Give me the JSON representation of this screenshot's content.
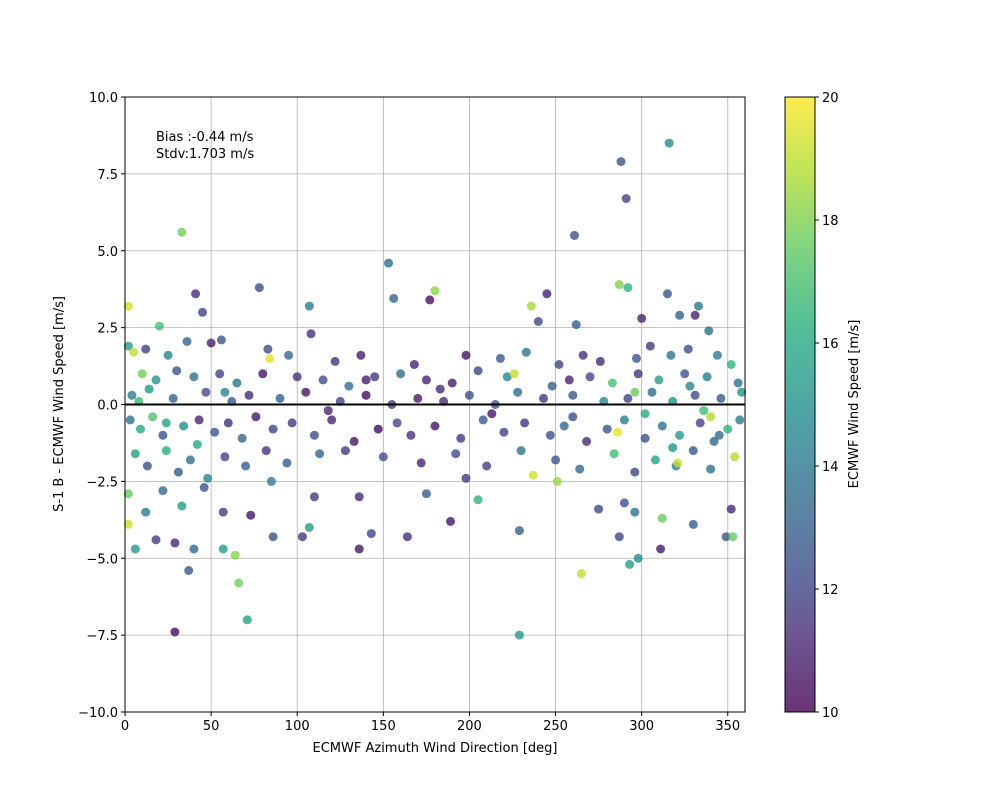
{
  "chart_data": {
    "type": "scatter",
    "xlabel": "ECMWF Azimuth Wind Direction [deg]",
    "ylabel": "S-1 B - ECMWF Wind Speed [m/s]",
    "xlim": [
      0,
      360
    ],
    "ylim": [
      -10,
      10
    ],
    "x_ticks": [
      "0",
      "50",
      "100",
      "150",
      "200",
      "250",
      "300",
      "350"
    ],
    "y_ticks": [
      "−10.0",
      "−7.5",
      "−5.0",
      "−2.5",
      "0.0",
      "2.5",
      "5.0",
      "7.5",
      "10.0"
    ],
    "grid": true,
    "reference_line_y": 0,
    "annotation": {
      "line1": "Bias :-0.44 m/s",
      "line2": "Stdv:1.703 m/s"
    },
    "colorbar": {
      "label": "ECMWF Wind Speed [m/s]",
      "range": [
        10,
        20
      ],
      "ticks": [
        "10",
        "12",
        "14",
        "16",
        "18",
        "20"
      ],
      "colormap": "viridis",
      "colors": [
        "#440154",
        "#472c7a",
        "#3b528b",
        "#2c728e",
        "#21918c",
        "#28ae80",
        "#5ec962",
        "#addc30",
        "#fde725"
      ]
    },
    "point_alpha": 0.8,
    "series": [
      {
        "points": [
          [
            316,
            8.5,
            14.8
          ],
          [
            288,
            7.9,
            12.6
          ],
          [
            291,
            6.7,
            12.0
          ],
          [
            33,
            5.6,
            17.8
          ],
          [
            261,
            5.5,
            12.4
          ],
          [
            153,
            4.6,
            13.6
          ],
          [
            287,
            3.9,
            18.0
          ],
          [
            292,
            3.8,
            16.5
          ],
          [
            180,
            3.7,
            18.2
          ],
          [
            41,
            3.6,
            11.2
          ],
          [
            245,
            3.6,
            11.0
          ],
          [
            156,
            3.45,
            13.2
          ],
          [
            177,
            3.4,
            10.4
          ],
          [
            78,
            3.8,
            12.4
          ],
          [
            2,
            3.2,
            19.3
          ],
          [
            107,
            3.2,
            14.2
          ],
          [
            236,
            3.2,
            18.6
          ],
          [
            333,
            3.2,
            14.0
          ],
          [
            315,
            3.6,
            12.6
          ],
          [
            331,
            2.9,
            11.0
          ],
          [
            20,
            2.55,
            17.0
          ],
          [
            262,
            2.6,
            13.0
          ],
          [
            108,
            2.3,
            11.4
          ],
          [
            45,
            3.0,
            12.0
          ],
          [
            240,
            2.7,
            12.2
          ],
          [
            300,
            2.8,
            11.0
          ],
          [
            322,
            2.9,
            13.0
          ],
          [
            339,
            2.4,
            13.6
          ],
          [
            2,
            1.9,
            15.5
          ],
          [
            5,
            1.7,
            19.0
          ],
          [
            12,
            1.8,
            12.0
          ],
          [
            25,
            1.6,
            14.6
          ],
          [
            36,
            2.05,
            13.2
          ],
          [
            50,
            2.0,
            10.8
          ],
          [
            56,
            2.1,
            12.6
          ],
          [
            83,
            1.8,
            12.4
          ],
          [
            95,
            1.6,
            13.4
          ],
          [
            122,
            1.4,
            11.6
          ],
          [
            137,
            1.6,
            10.8
          ],
          [
            168,
            1.3,
            11.0
          ],
          [
            198,
            1.6,
            10.6
          ],
          [
            218,
            1.5,
            12.8
          ],
          [
            233,
            1.7,
            13.8
          ],
          [
            252,
            1.3,
            12.0
          ],
          [
            266,
            1.6,
            11.4
          ],
          [
            276,
            1.4,
            11.2
          ],
          [
            297,
            1.5,
            12.6
          ],
          [
            305,
            1.9,
            11.6
          ],
          [
            317,
            1.6,
            13.8
          ],
          [
            327,
            1.8,
            12.4
          ],
          [
            344,
            1.6,
            14.0
          ],
          [
            352,
            1.3,
            16.5
          ],
          [
            10,
            1.0,
            17.8
          ],
          [
            18,
            0.8,
            15.0
          ],
          [
            30,
            1.1,
            12.6
          ],
          [
            40,
            0.9,
            13.8
          ],
          [
            55,
            1.0,
            12.0
          ],
          [
            65,
            0.7,
            13.8
          ],
          [
            80,
            1.0,
            10.6
          ],
          [
            100,
            0.9,
            11.4
          ],
          [
            115,
            0.8,
            12.4
          ],
          [
            130,
            0.6,
            13.6
          ],
          [
            145,
            0.9,
            11.6
          ],
          [
            160,
            1.0,
            13.4
          ],
          [
            175,
            0.8,
            11.0
          ],
          [
            190,
            0.7,
            10.8
          ],
          [
            205,
            1.1,
            12.2
          ],
          [
            222,
            0.9,
            14.4
          ],
          [
            248,
            0.6,
            13.0
          ],
          [
            258,
            0.8,
            11.0
          ],
          [
            270,
            0.9,
            12.2
          ],
          [
            283,
            0.7,
            17.0
          ],
          [
            298,
            1.0,
            11.4
          ],
          [
            310,
            0.8,
            15.6
          ],
          [
            325,
            1.0,
            12.6
          ],
          [
            338,
            0.9,
            14.2
          ],
          [
            356,
            0.7,
            13.6
          ],
          [
            4,
            0.3,
            14.0
          ],
          [
            14,
            0.5,
            15.2
          ],
          [
            28,
            0.2,
            13.0
          ],
          [
            47,
            0.4,
            12.4
          ],
          [
            62,
            0.1,
            12.8
          ],
          [
            72,
            0.3,
            11.2
          ],
          [
            90,
            0.2,
            13.2
          ],
          [
            105,
            0.4,
            10.6
          ],
          [
            125,
            0.1,
            12.0
          ],
          [
            140,
            0.3,
            10.4
          ],
          [
            155,
            0.0,
            11.6
          ],
          [
            170,
            0.2,
            10.8
          ],
          [
            185,
            0.1,
            11.2
          ],
          [
            200,
            0.3,
            12.4
          ],
          [
            215,
            0.0,
            12.6
          ],
          [
            228,
            0.4,
            13.4
          ],
          [
            243,
            0.2,
            11.4
          ],
          [
            260,
            0.3,
            12.8
          ],
          [
            278,
            0.1,
            14.6
          ],
          [
            292,
            0.2,
            12.0
          ],
          [
            306,
            0.4,
            13.4
          ],
          [
            318,
            0.1,
            15.0
          ],
          [
            331,
            0.3,
            12.2
          ],
          [
            346,
            0.2,
            12.8
          ],
          [
            358,
            0.4,
            15.2
          ],
          [
            3,
            -0.5,
            13.8
          ],
          [
            9,
            -0.8,
            16.0
          ],
          [
            16,
            -0.4,
            17.2
          ],
          [
            22,
            -1.0,
            12.6
          ],
          [
            34,
            -0.7,
            14.8
          ],
          [
            43,
            -0.5,
            11.0
          ],
          [
            52,
            -0.9,
            12.8
          ],
          [
            60,
            -0.6,
            11.4
          ],
          [
            68,
            -1.1,
            13.2
          ],
          [
            76,
            -0.4,
            10.6
          ],
          [
            86,
            -0.8,
            12.0
          ],
          [
            97,
            -0.6,
            11.6
          ],
          [
            110,
            -1.0,
            12.4
          ],
          [
            120,
            -0.5,
            11.0
          ],
          [
            133,
            -1.2,
            10.6
          ],
          [
            147,
            -0.8,
            10.4
          ],
          [
            158,
            -0.6,
            12.2
          ],
          [
            166,
            -1.0,
            11.4
          ],
          [
            180,
            -0.7,
            10.6
          ],
          [
            195,
            -1.1,
            11.6
          ],
          [
            208,
            -0.5,
            12.8
          ],
          [
            220,
            -0.9,
            12.0
          ],
          [
            232,
            -0.6,
            11.4
          ],
          [
            247,
            -1.0,
            12.6
          ],
          [
            255,
            -0.7,
            13.4
          ],
          [
            268,
            -1.2,
            11.2
          ],
          [
            280,
            -0.8,
            12.6
          ],
          [
            290,
            -0.5,
            14.2
          ],
          [
            302,
            -1.1,
            12.4
          ],
          [
            312,
            -0.7,
            13.8
          ],
          [
            322,
            -1.0,
            15.4
          ],
          [
            334,
            -0.6,
            12.0
          ],
          [
            342,
            -1.2,
            13.2
          ],
          [
            350,
            -0.8,
            16.4
          ],
          [
            357,
            -0.5,
            14.0
          ],
          [
            6,
            -1.6,
            15.6
          ],
          [
            13,
            -2.0,
            12.4
          ],
          [
            24,
            -1.5,
            16.2
          ],
          [
            31,
            -2.2,
            12.8
          ],
          [
            38,
            -1.8,
            13.6
          ],
          [
            48,
            -2.4,
            14.6
          ],
          [
            58,
            -1.7,
            12.0
          ],
          [
            70,
            -2.0,
            13.0
          ],
          [
            82,
            -1.5,
            11.4
          ],
          [
            94,
            -1.9,
            12.8
          ],
          [
            113,
            -1.6,
            13.2
          ],
          [
            128,
            -1.5,
            11.6
          ],
          [
            150,
            -1.7,
            12.4
          ],
          [
            172,
            -1.9,
            11.0
          ],
          [
            192,
            -1.6,
            12.2
          ],
          [
            210,
            -2.0,
            11.8
          ],
          [
            230,
            -1.5,
            13.8
          ],
          [
            250,
            -1.8,
            12.6
          ],
          [
            264,
            -2.1,
            13.4
          ],
          [
            284,
            -1.6,
            16.8
          ],
          [
            296,
            -2.2,
            12.2
          ],
          [
            308,
            -1.8,
            15.8
          ],
          [
            320,
            -2.0,
            14.2
          ],
          [
            330,
            -1.5,
            12.8
          ],
          [
            340,
            -2.1,
            13.6
          ],
          [
            354,
            -1.7,
            18.8
          ],
          [
            2,
            -2.9,
            17.6
          ],
          [
            12,
            -3.5,
            14.2
          ],
          [
            22,
            -2.8,
            13.4
          ],
          [
            33,
            -3.3,
            15.4
          ],
          [
            46,
            -2.7,
            12.6
          ],
          [
            57,
            -3.5,
            11.8
          ],
          [
            73,
            -3.6,
            10.6
          ],
          [
            85,
            -2.5,
            14.2
          ],
          [
            110,
            -3.0,
            11.6
          ],
          [
            136,
            -3.0,
            11.2
          ],
          [
            175,
            -2.9,
            12.8
          ],
          [
            198,
            -2.4,
            11.6
          ],
          [
            205,
            -3.1,
            16.4
          ],
          [
            275,
            -3.4,
            12.2
          ],
          [
            290,
            -3.2,
            12.4
          ],
          [
            296,
            -3.5,
            13.8
          ],
          [
            312,
            -3.7,
            17.6
          ],
          [
            330,
            -3.9,
            13.0
          ],
          [
            352,
            -3.4,
            11.2
          ],
          [
            2,
            -3.9,
            19.3
          ],
          [
            6,
            -4.7,
            15.2
          ],
          [
            18,
            -4.4,
            11.8
          ],
          [
            29,
            -4.5,
            11.0
          ],
          [
            37,
            -5.4,
            12.8
          ],
          [
            40,
            -4.7,
            13.4
          ],
          [
            57,
            -4.7,
            15.4
          ],
          [
            64,
            -4.9,
            18.2
          ],
          [
            86,
            -4.3,
            12.6
          ],
          [
            103,
            -4.3,
            11.6
          ],
          [
            107,
            -4.0,
            15.6
          ],
          [
            136,
            -4.7,
            10.6
          ],
          [
            143,
            -4.2,
            12.0
          ],
          [
            164,
            -4.3,
            11.4
          ],
          [
            189,
            -3.8,
            10.6
          ],
          [
            229,
            -4.1,
            13.0
          ],
          [
            287,
            -4.3,
            12.2
          ],
          [
            311,
            -4.7,
            10.8
          ],
          [
            349,
            -4.3,
            12.6
          ],
          [
            353,
            -4.3,
            17.6
          ],
          [
            293,
            -5.2,
            15.6
          ],
          [
            298,
            -5.0,
            14.8
          ],
          [
            66,
            -5.8,
            17.8
          ],
          [
            265,
            -5.5,
            19.0
          ],
          [
            71,
            -7.0,
            15.8
          ],
          [
            29,
            -7.4,
            10.4
          ],
          [
            229,
            -7.5,
            15.4
          ],
          [
            140,
            0.8,
            10.8
          ],
          [
            183,
            0.5,
            11.2
          ],
          [
            213,
            -0.3,
            10.6
          ],
          [
            118,
            -0.2,
            11.0
          ],
          [
            260,
            -0.4,
            12.4
          ],
          [
            345,
            -1.0,
            13.4
          ],
          [
            328,
            0.6,
            14.6
          ],
          [
            302,
            -0.3,
            16.2
          ],
          [
            318,
            -1.4,
            15.2
          ],
          [
            336,
            -0.2,
            16.8
          ],
          [
            24,
            -0.6,
            15.8
          ],
          [
            8,
            0.1,
            16.6
          ],
          [
            42,
            -1.3,
            16.0
          ],
          [
            58,
            0.4,
            14.4
          ],
          [
            226,
            1.0,
            19.0
          ],
          [
            237,
            -2.3,
            19.2
          ],
          [
            251,
            -2.5,
            18.4
          ],
          [
            340,
            -0.4,
            18.8
          ],
          [
            321,
            -1.9,
            19.2
          ],
          [
            84,
            1.5,
            19.6
          ],
          [
            286,
            -0.9,
            19.6
          ],
          [
            296,
            0.4,
            17.6
          ]
        ]
      }
    ]
  }
}
